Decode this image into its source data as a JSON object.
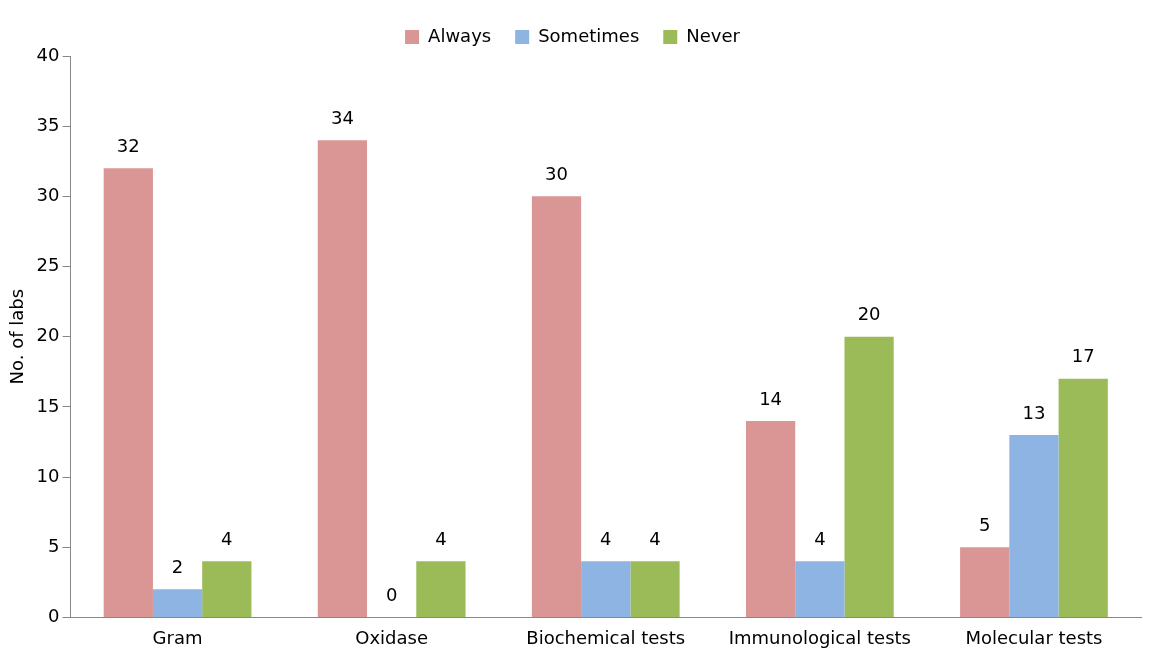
{
  "chart_data": {
    "type": "bar",
    "ylabel": "No. of labs",
    "categories": [
      "Gram",
      "Oxidase",
      "Biochemical tests",
      "Immunological tests",
      "Molecular tests"
    ],
    "series": [
      {
        "name": "Always",
        "color": "#d99694",
        "values": [
          32,
          34,
          30,
          14,
          5
        ]
      },
      {
        "name": "Sometimes",
        "color": "#8eb4e3",
        "values": [
          2,
          0,
          4,
          4,
          13
        ]
      },
      {
        "name": "Never",
        "color": "#9bbb59",
        "values": [
          4,
          4,
          4,
          20,
          17
        ]
      }
    ],
    "ylim": [
      0,
      40
    ],
    "yticks": [
      0,
      5,
      10,
      15,
      20,
      25,
      30,
      35,
      40
    ],
    "grid": false,
    "legend": "top",
    "data_labels": true
  }
}
